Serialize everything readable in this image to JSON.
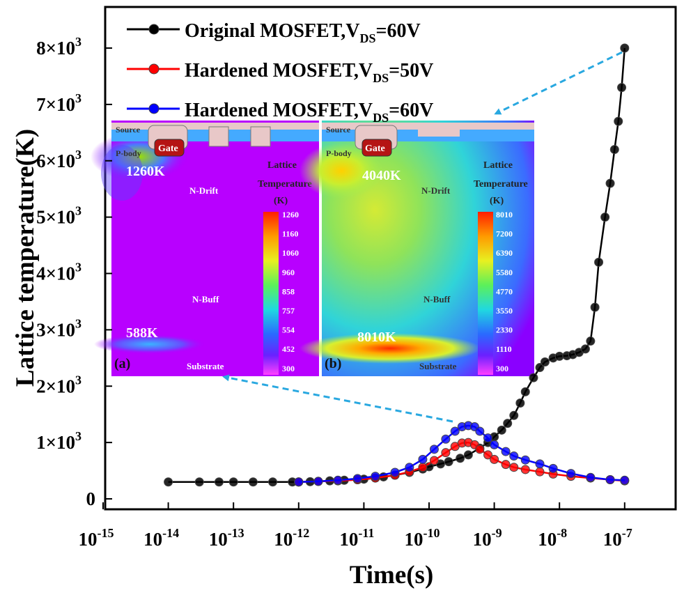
{
  "chart_data": {
    "type": "scatter",
    "x_scale": "log",
    "xlim": [
      1e-15,
      1e-07
    ],
    "ylim": [
      0,
      8000
    ],
    "xlabel": "Time(s)",
    "ylabel": "Lattice temperature(K)",
    "x_ticks": [
      {
        "base": "10",
        "exp": "-15",
        "value": 1e-15
      },
      {
        "base": "10",
        "exp": "-14",
        "value": 1e-14
      },
      {
        "base": "10",
        "exp": "-13",
        "value": 1e-13
      },
      {
        "base": "10",
        "exp": "-12",
        "value": 1e-12
      },
      {
        "base": "10",
        "exp": "-11",
        "value": 1e-11
      },
      {
        "base": "10",
        "exp": "-10",
        "value": 1e-10
      },
      {
        "base": "10",
        "exp": "-9",
        "value": 1e-09
      },
      {
        "base": "10",
        "exp": "-8",
        "value": 1e-08
      },
      {
        "base": "10",
        "exp": "-7",
        "value": 1e-07
      }
    ],
    "y_ticks": [
      {
        "mant": "0",
        "exp": "",
        "value": 0
      },
      {
        "mant": "1×10",
        "exp": "3",
        "value": 1000
      },
      {
        "mant": "2×10",
        "exp": "3",
        "value": 2000
      },
      {
        "mant": "3×10",
        "exp": "3",
        "value": 3000
      },
      {
        "mant": "4×10",
        "exp": "3",
        "value": 4000
      },
      {
        "mant": "5×10",
        "exp": "3",
        "value": 5000
      },
      {
        "mant": "6×10",
        "exp": "3",
        "value": 6000
      },
      {
        "mant": "7×10",
        "exp": "3",
        "value": 7000
      },
      {
        "mant": "8×10",
        "exp": "3",
        "value": 8000
      }
    ],
    "legend_position": "top-left",
    "series": [
      {
        "name": "Original MOSFET,VDS=60V",
        "legend_main": "Original MOSFET,V",
        "legend_sub": "DS",
        "legend_tail": "=60V",
        "color": "#000000",
        "x": [
          1e-14,
          3e-14,
          6e-14,
          1e-13,
          2e-13,
          4e-13,
          8e-13,
          1e-12,
          1.5e-12,
          2e-12,
          3e-12,
          5e-12,
          8e-12,
          1e-11,
          1.5e-11,
          2e-11,
          3e-11,
          5e-11,
          8e-11,
          1e-10,
          1.5e-10,
          2e-10,
          3e-10,
          4e-10,
          6e-10,
          8e-10,
          1e-09,
          1.3e-09,
          1.6e-09,
          2e-09,
          2.5e-09,
          3e-09,
          4e-09,
          5e-09,
          6e-09,
          8e-09,
          1e-08,
          1.3e-08,
          1.6e-08,
          2e-08,
          2.5e-08,
          3e-08,
          3.5e-08,
          4e-08,
          5e-08,
          6e-08,
          7e-08,
          8e-08,
          9e-08,
          1e-07
        ],
        "y": [
          300,
          300,
          300,
          300,
          300,
          300,
          300,
          300,
          305,
          310,
          320,
          330,
          340,
          350,
          370,
          390,
          420,
          470,
          530,
          570,
          620,
          660,
          720,
          780,
          900,
          1000,
          1100,
          1220,
          1340,
          1480,
          1700,
          1900,
          2150,
          2330,
          2430,
          2500,
          2530,
          2540,
          2560,
          2600,
          2660,
          2800,
          3400,
          4200,
          5000,
          5600,
          6200,
          6700,
          7300,
          8000
        ]
      },
      {
        "name": "Hardened MOSFET,VDS=50V",
        "legend_main": "Hardened MOSFET,V",
        "legend_sub": "DS",
        "legend_tail": "=50V",
        "color": "#ff0000",
        "x": [
          1e-12,
          2e-12,
          4e-12,
          8e-12,
          1.5e-11,
          3e-11,
          5e-11,
          8e-11,
          1.2e-10,
          1.8e-10,
          2.5e-10,
          3.2e-10,
          4e-10,
          5e-10,
          6e-10,
          8e-10,
          1e-09,
          1.5e-09,
          2e-09,
          3e-09,
          5e-09,
          8e-09,
          1.5e-08,
          3e-08,
          6e-08,
          1e-07
        ],
        "y": [
          300,
          310,
          320,
          340,
          370,
          420,
          480,
          560,
          680,
          820,
          930,
          990,
          1000,
          960,
          880,
          780,
          700,
          610,
          560,
          520,
          480,
          440,
          400,
          370,
          340,
          320
        ]
      },
      {
        "name": "Hardened MOSFET,VDS=60V",
        "legend_main": "Hardened MOSFET,V",
        "legend_sub": "DS",
        "legend_tail": "=60V",
        "color": "#0000ff",
        "x": [
          1e-12,
          2e-12,
          4e-12,
          8e-12,
          1.5e-11,
          3e-11,
          5e-11,
          8e-11,
          1.2e-10,
          1.8e-10,
          2.5e-10,
          3.2e-10,
          4e-10,
          5e-10,
          6e-10,
          8e-10,
          1e-09,
          1.5e-09,
          2e-09,
          3e-09,
          5e-09,
          8e-09,
          1.5e-08,
          3e-08,
          6e-08,
          1e-07
        ],
        "y": [
          300,
          310,
          330,
          360,
          400,
          470,
          560,
          700,
          880,
          1060,
          1200,
          1280,
          1300,
          1280,
          1200,
          1080,
          960,
          840,
          760,
          690,
          620,
          540,
          450,
          380,
          340,
          330
        ]
      }
    ]
  },
  "insets": [
    {
      "tag": "(a)",
      "labels": {
        "source": "Source",
        "gate": "Gate",
        "pbody": "P-body",
        "ndrift": "N-Drift",
        "nbuff": "N-Buff",
        "substrate": "Substrate",
        "hot_temp": "1260K",
        "low_temp": "588K"
      },
      "colorbar_title": [
        "Lattice",
        "Temperature",
        "(K)"
      ],
      "colorbar_ticks": [
        "1260",
        "1160",
        "1060",
        "960",
        "858",
        "757",
        "554",
        "452",
        "300"
      ]
    },
    {
      "tag": "(b)",
      "labels": {
        "source": "Source",
        "gate": "Gate",
        "pbody": "P-body",
        "ndrift": "N-Drift",
        "nbuff": "N-Buff",
        "substrate": "Substrate",
        "hot_temp": "4040K",
        "low_temp": "8010K"
      },
      "colorbar_title": [
        "Lattice",
        "Temperature",
        "(K)"
      ],
      "colorbar_ticks": [
        "8010",
        "7200",
        "6390",
        "5580",
        "4770",
        "3550",
        "2330",
        "1110",
        "300"
      ]
    }
  ]
}
